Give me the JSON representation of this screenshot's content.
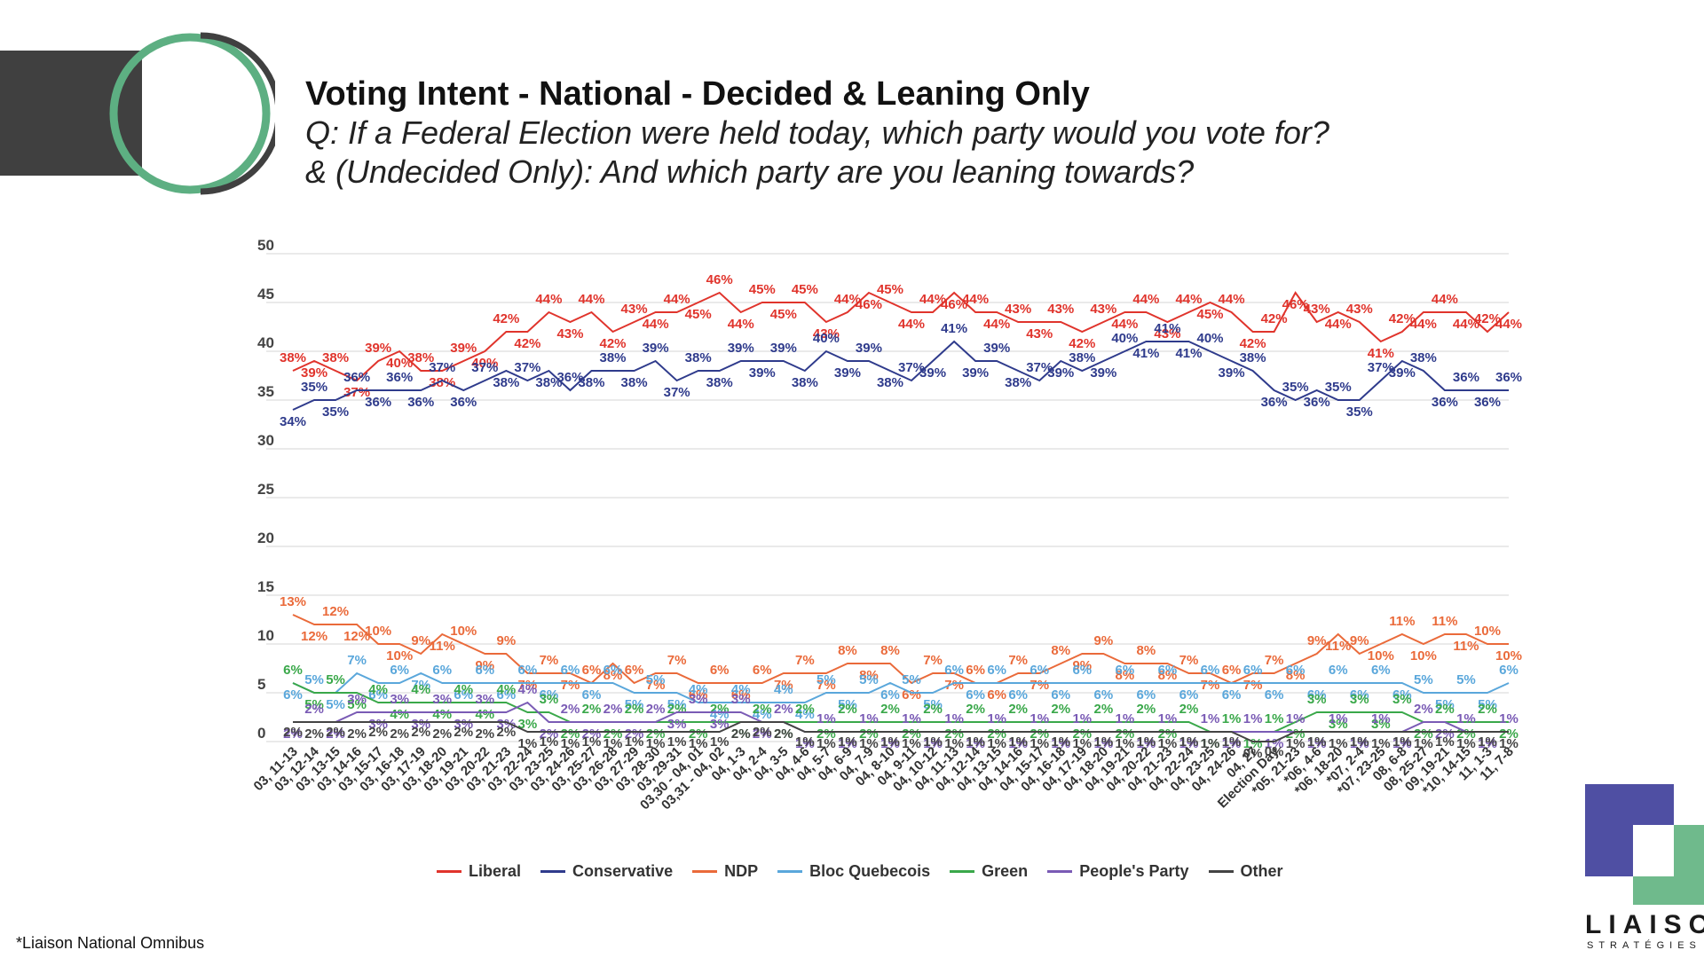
{
  "title": "Voting Intent - National - Decided & Leaning Only",
  "subtitle1": "Q: If a Federal Election were held today, which party would you vote for?",
  "subtitle2": "& (Undecided Only): And which party are you leaning towards?",
  "footnote": "*Liaison National Omnibus",
  "brand": {
    "name": "LIAISON",
    "sub": "STRATÉGIES"
  },
  "chart_data": {
    "type": "line",
    "ylim": [
      0,
      50
    ],
    "yticks": [
      0,
      5,
      10,
      15,
      20,
      25,
      30,
      35,
      40,
      45,
      50
    ],
    "categories": [
      "03, 11-13",
      "03, 12-14",
      "03, 13-15",
      "03, 14-16",
      "03, 15-17",
      "03, 16-18",
      "03, 17-19",
      "03, 18-20",
      "03, 19-21",
      "03, 20-22",
      "03, 21-23",
      "03, 22-24",
      "03, 23-25",
      "03, 24-26",
      "03, 25-27",
      "03, 26-28",
      "03, 27-29",
      "03, 28-30",
      "03, 29-31",
      "03,30 - 04, 01",
      "03,31 - 04, 02",
      "04, 1-3",
      "04, 2-4",
      "04, 3-5",
      "04, 4-6",
      "04, 5-7",
      "04, 6-9",
      "04, 7-9",
      "04, 8-10",
      "04, 9-11",
      "04, 10-12",
      "04, 11-13",
      "04, 12-14",
      "04, 13-15",
      "04, 14-16",
      "04, 15-17",
      "04, 16-18",
      "04, 17-19",
      "04, 18-20",
      "04, 19-21",
      "04, 20-22",
      "04, 21-23",
      "04, 22-24",
      "04, 23-25",
      "04, 24-26",
      "04, 27",
      "Election Day",
      "*05, 21-23",
      "*06, 4-6",
      "*06, 18-20",
      "*07, 2-4",
      "*07, 23-25",
      "08, 6-8",
      "08, 25-27",
      "09, 19-21",
      "*10, 14-15",
      "11, 1-3",
      "11, 7-8"
    ],
    "series": [
      {
        "name": "Liberal",
        "color": "#e0342c",
        "values": [
          38,
          39,
          38,
          37,
          39,
          40,
          38,
          38,
          39,
          40,
          42,
          42,
          44,
          43,
          44,
          42,
          43,
          44,
          44,
          45,
          46,
          44,
          45,
          45,
          45,
          43,
          44,
          46,
          45,
          44,
          44,
          46,
          44,
          44,
          43,
          43,
          43,
          42,
          43,
          44,
          44,
          43,
          44,
          45,
          44,
          42,
          42,
          46,
          43,
          44,
          43,
          41,
          42,
          44,
          44,
          44,
          42,
          44
        ]
      },
      {
        "name": "Conservative",
        "color": "#2f3b8c",
        "values": [
          34,
          35,
          35,
          36,
          36,
          36,
          36,
          37,
          36,
          37,
          38,
          37,
          38,
          36,
          38,
          38,
          38,
          39,
          37,
          38,
          38,
          39,
          39,
          39,
          38,
          40,
          39,
          39,
          38,
          37,
          39,
          41,
          39,
          39,
          38,
          37,
          39,
          38,
          39,
          40,
          41,
          41,
          41,
          40,
          39,
          38,
          36,
          35,
          36,
          35,
          35,
          37,
          39,
          38,
          36,
          36,
          36,
          36
        ]
      },
      {
        "name": "NDP",
        "color": "#ea6a3a",
        "values": [
          13,
          12,
          12,
          12,
          10,
          10,
          9,
          11,
          10,
          9,
          9,
          7,
          7,
          7,
          6,
          8,
          6,
          7,
          7,
          6,
          6,
          6,
          6,
          7,
          7,
          7,
          8,
          8,
          8,
          6,
          7,
          7,
          6,
          6,
          7,
          7,
          8,
          9,
          9,
          8,
          8,
          8,
          7,
          7,
          6,
          7,
          7,
          8,
          9,
          11,
          9,
          10,
          11,
          10,
          11,
          11,
          10,
          10
        ]
      },
      {
        "name": "Bloc Quebecois",
        "color": "#5aa7db",
        "values": [
          6,
          5,
          5,
          7,
          6,
          6,
          7,
          6,
          6,
          6,
          6,
          6,
          6,
          6,
          6,
          6,
          5,
          5,
          5,
          4,
          4,
          4,
          4,
          4,
          4,
          5,
          5,
          5,
          6,
          5,
          5,
          6,
          6,
          6,
          6,
          6,
          6,
          6,
          6,
          6,
          6,
          6,
          6,
          6,
          6,
          6,
          6,
          6,
          6,
          6,
          6,
          6,
          6,
          5,
          5,
          5,
          5,
          6
        ]
      },
      {
        "name": "Green",
        "color": "#3aa84a",
        "values": [
          6,
          5,
          5,
          5,
          4,
          4,
          4,
          4,
          4,
          4,
          4,
          3,
          3,
          2,
          2,
          2,
          2,
          2,
          2,
          2,
          2,
          2,
          2,
          2,
          2,
          2,
          2,
          2,
          2,
          2,
          2,
          2,
          2,
          2,
          2,
          2,
          2,
          2,
          2,
          2,
          2,
          2,
          2,
          1,
          1,
          1,
          1,
          2,
          3,
          3,
          3,
          3,
          3,
          2,
          2,
          2,
          2,
          2
        ]
      },
      {
        "name": "People's Party",
        "color": "#7a5bb5",
        "values": [
          2,
          2,
          2,
          3,
          3,
          3,
          3,
          3,
          3,
          3,
          3,
          4,
          2,
          2,
          2,
          2,
          2,
          2,
          3,
          3,
          3,
          3,
          2,
          2,
          1,
          1,
          1,
          1,
          1,
          1,
          1,
          1,
          1,
          1,
          1,
          1,
          1,
          1,
          1,
          1,
          1,
          1,
          1,
          1,
          1,
          1,
          1,
          1,
          1,
          1,
          1,
          1,
          1,
          2,
          2,
          1,
          1,
          1
        ]
      },
      {
        "name": "Other",
        "color": "#444444",
        "values": [
          2,
          2,
          2,
          2,
          2,
          2,
          2,
          2,
          2,
          2,
          2,
          1,
          1,
          1,
          1,
          1,
          1,
          1,
          1,
          1,
          1,
          2,
          2,
          2,
          1,
          1,
          1,
          1,
          1,
          1,
          1,
          1,
          1,
          1,
          1,
          1,
          1,
          1,
          1,
          1,
          1,
          1,
          1,
          1,
          1,
          0,
          0,
          1,
          1,
          1,
          1,
          1,
          1,
          1,
          1,
          1,
          1,
          1
        ]
      }
    ]
  }
}
